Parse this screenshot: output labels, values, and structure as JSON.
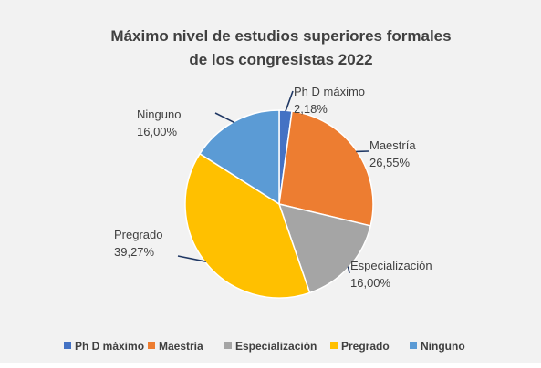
{
  "chart_data": {
    "type": "pie",
    "title": [
      "Máximo nivel de estudios superiores formales",
      "de los congresistas 2022"
    ],
    "categories": [
      "Ph D máximo",
      "Maestría",
      "Especialización",
      "Pregrado",
      "Ninguno"
    ],
    "values": [
      2.18,
      26.55,
      16.0,
      39.27,
      16.0
    ],
    "value_labels": [
      "2,18%",
      "26,55%",
      "16,00%",
      "39,27%",
      "16,00%"
    ],
    "colors": [
      "#4472c4",
      "#ed7d31",
      "#a5a5a5",
      "#ffc000",
      "#5b9bd5"
    ],
    "legend_position": "bottom",
    "background": "#f2f2f2"
  }
}
